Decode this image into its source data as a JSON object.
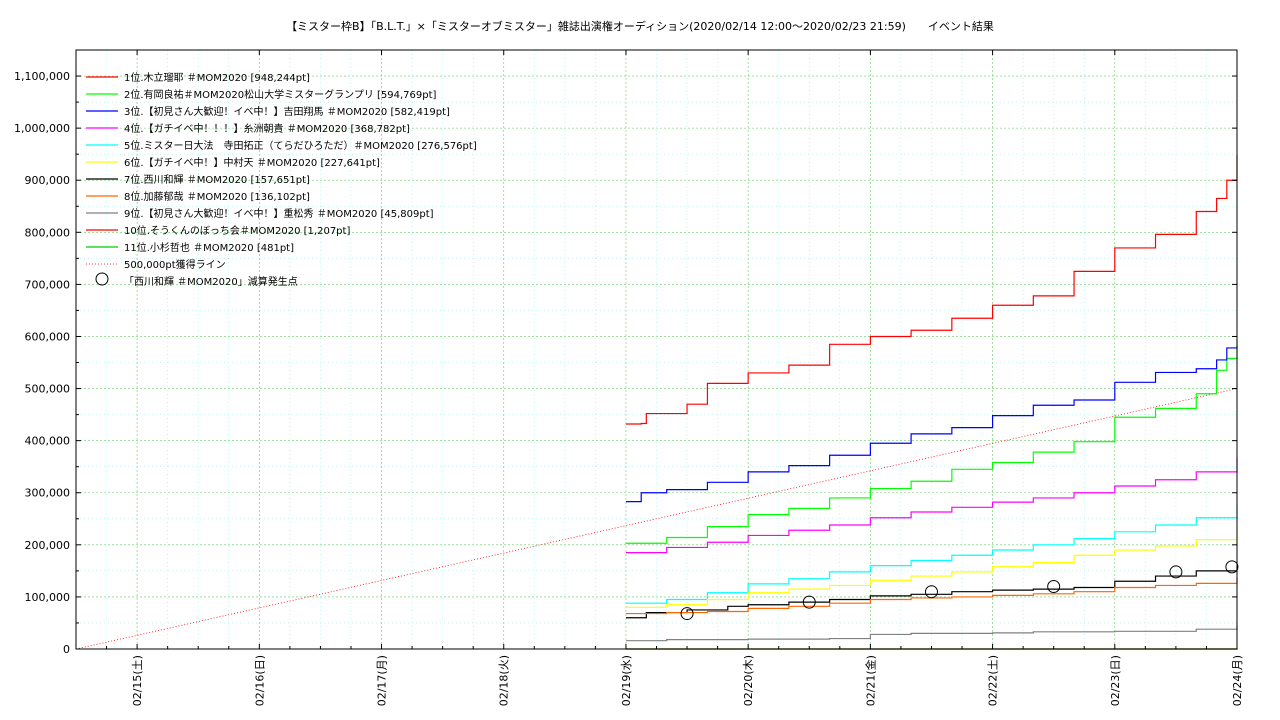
{
  "chart_data": {
    "type": "line",
    "title": "【ミスター枠B】「B.L.T.」×「ミスターオブミスター」雑誌出演権オーディション(2020/02/14 12:00〜2020/02/23 21:59)　　イベント結果",
    "xlabel": "",
    "ylabel": "",
    "xlim": [
      "2020-02-14 12:00",
      "2020-02-24 00:00"
    ],
    "ylim": [
      0,
      1150000
    ],
    "y_ticks": [
      0,
      100000,
      200000,
      300000,
      400000,
      500000,
      600000,
      700000,
      800000,
      900000,
      1000000,
      1100000
    ],
    "y_tick_labels": [
      "0",
      "100,000",
      "200,000",
      "300,000",
      "400,000",
      "500,000",
      "600,000",
      "700,000",
      "800,000",
      "900,000",
      "1,000,000",
      "1,100,000"
    ],
    "x_ticks": [
      "2020-02-15",
      "2020-02-16",
      "2020-02-17",
      "2020-02-18",
      "2020-02-19",
      "2020-02-20",
      "2020-02-21",
      "2020-02-22",
      "2020-02-23",
      "2020-02-24"
    ],
    "x_tick_labels": [
      "02/15(土)",
      "02/16(日)",
      "02/17(月)",
      "02/18(火)",
      "02/19(水)",
      "02/20(木)",
      "02/21(金)",
      "02/22(土)",
      "02/23(日)",
      "02/24(月)"
    ],
    "grid": true,
    "legend_position": "top-left",
    "series": [
      {
        "name": "1位.木立瑠耶 ＃MOM2020 [948,244pt]",
        "color": "#ff0000",
        "x": [
          "2020-02-19 00:00",
          "2020-02-19 03:00",
          "2020-02-19 04:00",
          "2020-02-19 12:00",
          "2020-02-19 16:00",
          "2020-02-20 00:00",
          "2020-02-20 08:00",
          "2020-02-20 16:00",
          "2020-02-21 00:00",
          "2020-02-21 08:00",
          "2020-02-21 16:00",
          "2020-02-22 00:00",
          "2020-02-22 08:00",
          "2020-02-22 16:00",
          "2020-02-23 00:00",
          "2020-02-23 08:00",
          "2020-02-23 16:00",
          "2020-02-23 20:00",
          "2020-02-23 22:00",
          "2020-02-24 00:00"
        ],
        "y": [
          432000,
          433000,
          452000,
          470000,
          510000,
          530000,
          545000,
          585000,
          600000,
          612000,
          635000,
          660000,
          678000,
          725000,
          770000,
          796000,
          840000,
          865000,
          900000,
          948244
        ]
      },
      {
        "name": "2位.有岡良祐＃MOM2020松山大学ミスターグランプリ [594,769pt]",
        "color": "#00ff00",
        "x": [
          "2020-02-19 00:00",
          "2020-02-19 08:00",
          "2020-02-19 16:00",
          "2020-02-20 00:00",
          "2020-02-20 08:00",
          "2020-02-20 16:00",
          "2020-02-21 00:00",
          "2020-02-21 08:00",
          "2020-02-21 16:00",
          "2020-02-22 00:00",
          "2020-02-22 08:00",
          "2020-02-22 16:00",
          "2020-02-23 00:00",
          "2020-02-23 08:00",
          "2020-02-23 16:00",
          "2020-02-23 20:00",
          "2020-02-23 22:00",
          "2020-02-24 00:00"
        ],
        "y": [
          203000,
          214000,
          235000,
          258000,
          270000,
          290000,
          308000,
          322000,
          345000,
          358000,
          378000,
          398000,
          445000,
          462000,
          490000,
          535000,
          558000,
          594769
        ]
      },
      {
        "name": "3位.【初見さん大歓迎！イベ中！】吉田翔馬 ＃MOM2020 [582,419pt]",
        "color": "#0000ff",
        "x": [
          "2020-02-19 00:00",
          "2020-02-19 03:00",
          "2020-02-19 08:00",
          "2020-02-19 16:00",
          "2020-02-20 00:00",
          "2020-02-20 08:00",
          "2020-02-20 16:00",
          "2020-02-21 00:00",
          "2020-02-21 08:00",
          "2020-02-21 16:00",
          "2020-02-22 00:00",
          "2020-02-22 08:00",
          "2020-02-22 16:00",
          "2020-02-23 00:00",
          "2020-02-23 08:00",
          "2020-02-23 16:00",
          "2020-02-23 20:00",
          "2020-02-23 22:00",
          "2020-02-24 00:00"
        ],
        "y": [
          283000,
          300000,
          306000,
          320000,
          340000,
          352000,
          372000,
          395000,
          413000,
          425000,
          448000,
          468000,
          478000,
          512000,
          531000,
          538000,
          555000,
          578000,
          582419
        ]
      },
      {
        "name": "4位.【ガチイベ中！！！】糸洲朝貴 ＃MOM2020 [368,782pt]",
        "color": "#ff00ff",
        "x": [
          "2020-02-19 00:00",
          "2020-02-19 08:00",
          "2020-02-19 16:00",
          "2020-02-20 00:00",
          "2020-02-20 08:00",
          "2020-02-20 16:00",
          "2020-02-21 00:00",
          "2020-02-21 08:00",
          "2020-02-21 16:00",
          "2020-02-22 00:00",
          "2020-02-22 08:00",
          "2020-02-22 16:00",
          "2020-02-23 00:00",
          "2020-02-23 08:00",
          "2020-02-23 16:00",
          "2020-02-24 00:00"
        ],
        "y": [
          185000,
          195000,
          205000,
          218000,
          228000,
          238000,
          252000,
          263000,
          272000,
          282000,
          290000,
          300000,
          313000,
          325000,
          340000,
          368782
        ]
      },
      {
        "name": "5位.ミスター日大法　寺田拓正（てらだひろただ）＃MOM2020 [276,576pt]",
        "color": "#00ffff",
        "x": [
          "2020-02-19 00:00",
          "2020-02-19 08:00",
          "2020-02-19 16:00",
          "2020-02-20 00:00",
          "2020-02-20 08:00",
          "2020-02-20 16:00",
          "2020-02-21 00:00",
          "2020-02-21 08:00",
          "2020-02-21 16:00",
          "2020-02-22 00:00",
          "2020-02-22 08:00",
          "2020-02-22 16:00",
          "2020-02-23 00:00",
          "2020-02-23 08:00",
          "2020-02-23 16:00",
          "2020-02-24 00:00"
        ],
        "y": [
          88000,
          95000,
          108000,
          125000,
          135000,
          148000,
          160000,
          170000,
          180000,
          190000,
          200000,
          212000,
          225000,
          238000,
          252000,
          276576
        ]
      },
      {
        "name": "6位.【ガチイベ中！】中村天 ＃MOM2020 [227,641pt]",
        "color": "#ffff00",
        "x": [
          "2020-02-19 00:00",
          "2020-02-19 08:00",
          "2020-02-19 16:00",
          "2020-02-20 00:00",
          "2020-02-20 08:00",
          "2020-02-20 16:00",
          "2020-02-21 00:00",
          "2020-02-21 08:00",
          "2020-02-21 16:00",
          "2020-02-22 00:00",
          "2020-02-22 08:00",
          "2020-02-22 16:00",
          "2020-02-23 00:00",
          "2020-02-23 08:00",
          "2020-02-23 16:00",
          "2020-02-24 00:00"
        ],
        "y": [
          80000,
          85000,
          95000,
          108000,
          115000,
          122000,
          132000,
          140000,
          148000,
          158000,
          166000,
          180000,
          190000,
          198000,
          210000,
          227641
        ]
      },
      {
        "name": "7位.西川和輝 ＃MOM2020 [157,651pt]",
        "color": "#000000",
        "x": [
          "2020-02-19 00:00",
          "2020-02-19 04:00",
          "2020-02-19 12:00",
          "2020-02-19 20:00",
          "2020-02-20 00:00",
          "2020-02-20 08:00",
          "2020-02-20 16:00",
          "2020-02-21 00:00",
          "2020-02-21 08:00",
          "2020-02-21 16:00",
          "2020-02-22 00:00",
          "2020-02-22 08:00",
          "2020-02-22 16:00",
          "2020-02-23 00:00",
          "2020-02-23 08:00",
          "2020-02-23 16:00",
          "2020-02-24 00:00"
        ],
        "y": [
          60000,
          70000,
          75000,
          82000,
          85000,
          90000,
          95000,
          102000,
          105000,
          110000,
          113000,
          115000,
          118000,
          130000,
          140000,
          150000,
          157651
        ]
      },
      {
        "name": "8位.加藤郁哉 ＃MOM2020 [136,102pt]",
        "color": "#ff6600",
        "x": [
          "2020-02-19 00:00",
          "2020-02-19 08:00",
          "2020-02-19 16:00",
          "2020-02-20 00:00",
          "2020-02-20 08:00",
          "2020-02-20 16:00",
          "2020-02-21 00:00",
          "2020-02-21 08:00",
          "2020-02-21 16:00",
          "2020-02-22 00:00",
          "2020-02-22 08:00",
          "2020-02-22 16:00",
          "2020-02-23 00:00",
          "2020-02-23 08:00",
          "2020-02-23 16:00",
          "2020-02-24 00:00"
        ],
        "y": [
          68000,
          70000,
          72000,
          78000,
          82000,
          88000,
          95000,
          98000,
          100000,
          103000,
          106000,
          110000,
          118000,
          122000,
          126000,
          136102
        ]
      },
      {
        "name": "9位.【初見さん大歓迎！イベ中！】重松秀 ＃MOM2020 [45,809pt]",
        "color": "#808080",
        "x": [
          "2020-02-19 00:00",
          "2020-02-19 08:00",
          "2020-02-20 00:00",
          "2020-02-20 16:00",
          "2020-02-21 00:00",
          "2020-02-21 08:00",
          "2020-02-22 00:00",
          "2020-02-22 08:00",
          "2020-02-23 00:00",
          "2020-02-23 16:00",
          "2020-02-24 00:00"
        ],
        "y": [
          16000,
          18000,
          19000,
          20000,
          28000,
          30000,
          31000,
          33000,
          34000,
          38000,
          45809
        ]
      },
      {
        "name": "10位.そうくんのぼっち会＃MOM2020 [1,207pt]",
        "color": "#ff0000",
        "x": [
          "2020-02-19 00:00",
          "2020-02-24 00:00"
        ],
        "y": [
          0,
          1207
        ]
      },
      {
        "name": "11位.小杉哲也 ＃MOM2020 [481pt]",
        "color": "#00cc00",
        "x": [
          "2020-02-19 00:00",
          "2020-02-24 00:00"
        ],
        "y": [
          0,
          481
        ]
      }
    ],
    "reference_line": {
      "name": "500,000pt獲得ライン",
      "color": "#ff0000",
      "x": [
        "2020-02-14 12:00",
        "2020-02-24 00:00"
      ],
      "y": [
        0,
        500000
      ]
    },
    "markers": {
      "name": "「西川和輝 ＃MOM2020」減算発生点",
      "points": [
        {
          "x": "2020-02-19 12:00",
          "y": 68000
        },
        {
          "x": "2020-02-20 12:00",
          "y": 90000
        },
        {
          "x": "2020-02-21 12:00",
          "y": 110000
        },
        {
          "x": "2020-02-22 12:00",
          "y": 120000
        },
        {
          "x": "2020-02-23 12:00",
          "y": 148000
        },
        {
          "x": "2020-02-23 23:00",
          "y": 157651
        }
      ]
    }
  }
}
